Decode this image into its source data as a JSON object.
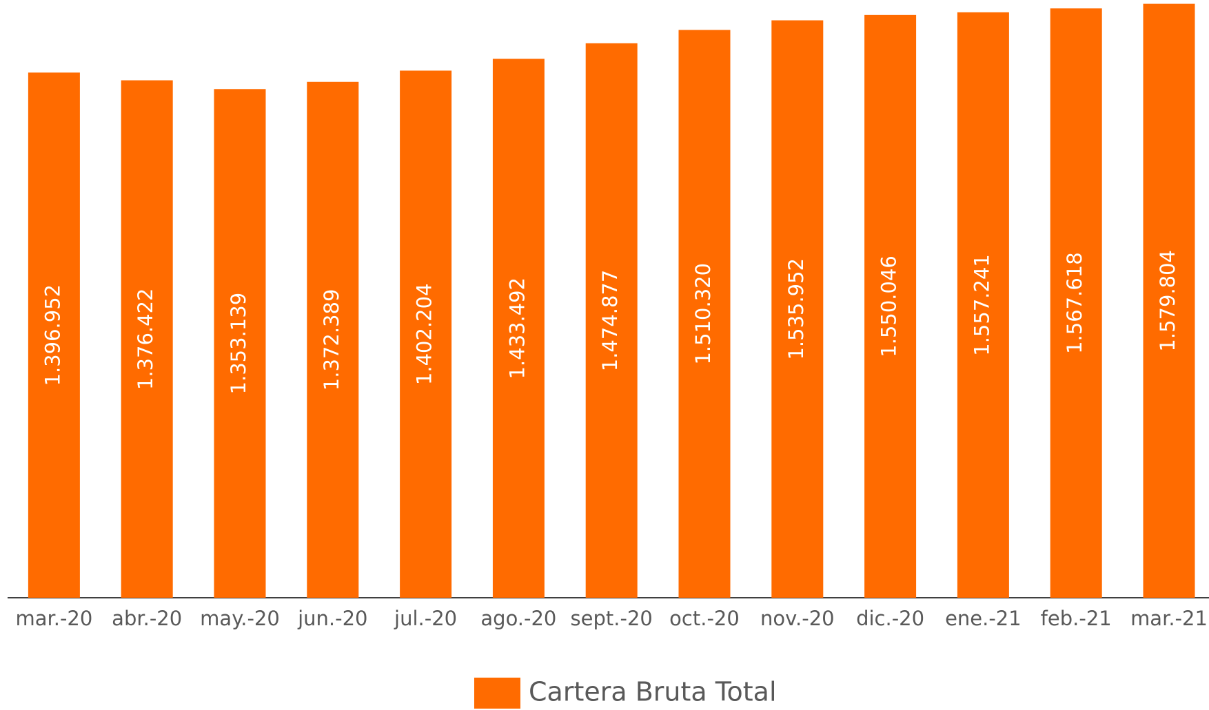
{
  "chart_data": {
    "type": "bar",
    "categories": [
      "mar.-20",
      "abr.-20",
      "may.-20",
      "jun.-20",
      "jul.-20",
      "ago.-20",
      "sept.-20",
      "oct.-20",
      "nov.-20",
      "dic.-20",
      "ene.-21",
      "feb.-21",
      "mar.-21"
    ],
    "series": [
      {
        "name": "Cartera Bruta Total",
        "color": "#ff6b00",
        "values": [
          1396952,
          1376422,
          1353139,
          1372389,
          1402204,
          1433492,
          1474877,
          1510320,
          1535952,
          1550046,
          1557241,
          1567618,
          1579804
        ],
        "value_labels": [
          "1.396.952",
          "1.376.422",
          "1.353.139",
          "1.372.389",
          "1.402.204",
          "1.433.492",
          "1.474.877",
          "1.510.320",
          "1.535.952",
          "1.550.046",
          "1.557.241",
          "1.567.618",
          "1.579.804"
        ]
      }
    ],
    "ylim": [
      0,
      1590000
    ],
    "legend": "bottom"
  }
}
